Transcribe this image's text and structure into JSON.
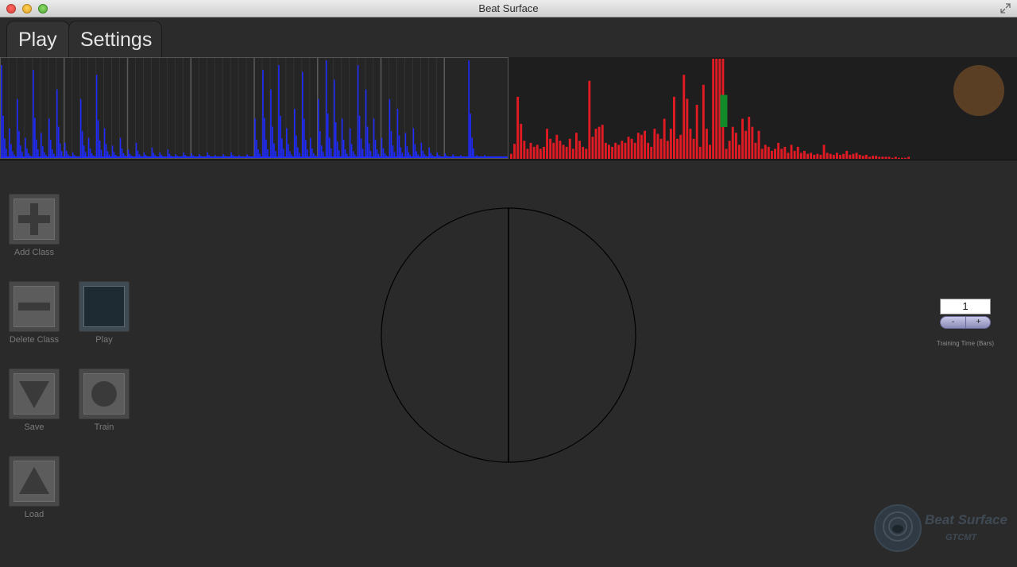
{
  "window": {
    "title": "Beat Surface"
  },
  "tabs": [
    {
      "label": "Play"
    },
    {
      "label": "Settings"
    }
  ],
  "controls": {
    "add_class": "Add Class",
    "delete_class": "Delete Class",
    "play": "Play",
    "save": "Save",
    "train": "Train",
    "load": "Load"
  },
  "training": {
    "value": "1",
    "minus": "-",
    "plus": "+",
    "label": "Training Time (Bars)"
  },
  "logo": {
    "name": "Beat Surface",
    "org": "GTCMT"
  },
  "colors": {
    "waveform": "#1f2bff",
    "spectrum": "#e01b24",
    "spectrum_highlight": "#128a2a",
    "level_indicator": "#5a3f25"
  },
  "visualizer": {
    "waveform_peaks": [
      0.95,
      0.3,
      0.6,
      0.2,
      0.9,
      0.25,
      0.4,
      0.7,
      0.15,
      0.05,
      0.6,
      0.2,
      0.85,
      0.3,
      0.12,
      0.2,
      0.08,
      0.15,
      0.05,
      0.1,
      0.05,
      0.08,
      0.03,
      0.05,
      0.04,
      0.03,
      0.05,
      0.02,
      0.03,
      0.05,
      0.02,
      0.03,
      0.4,
      0.9,
      0.7,
      0.95,
      0.3,
      0.5,
      0.88,
      0.2,
      0.6,
      1.0,
      0.8,
      0.4,
      0.3,
      0.95,
      0.7,
      0.4,
      0.2,
      0.6,
      0.5,
      0.25,
      0.3,
      0.15,
      0.1,
      0.05,
      0.04,
      0.03,
      0.02,
      1.0,
      0.02,
      0.02,
      0.01,
      0.01
    ],
    "spectrum_bins": [
      0.05,
      0.15,
      0.62,
      0.35,
      0.18,
      0.1,
      0.16,
      0.12,
      0.14,
      0.1,
      0.12,
      0.3,
      0.2,
      0.16,
      0.24,
      0.18,
      0.14,
      0.12,
      0.2,
      0.1,
      0.26,
      0.18,
      0.12,
      0.1,
      0.78,
      0.22,
      0.3,
      0.32,
      0.34,
      0.16,
      0.14,
      0.12,
      0.16,
      0.14,
      0.18,
      0.16,
      0.22,
      0.2,
      0.16,
      0.26,
      0.24,
      0.28,
      0.16,
      0.12,
      0.3,
      0.25,
      0.2,
      0.4,
      0.18,
      0.3,
      0.62,
      0.2,
      0.24,
      0.84,
      0.6,
      0.3,
      0.2,
      0.54,
      0.12,
      0.74,
      0.3,
      0.14,
      1.0,
      1.0,
      1.0,
      1.0,
      0.1,
      0.18,
      0.32,
      0.26,
      0.14,
      0.4,
      0.28,
      0.42,
      0.32,
      0.16,
      0.28,
      0.1,
      0.14,
      0.12,
      0.08,
      0.1,
      0.16,
      0.1,
      0.12,
      0.06,
      0.14,
      0.08,
      0.12,
      0.06,
      0.08,
      0.05,
      0.06,
      0.04,
      0.05,
      0.04,
      0.14,
      0.06,
      0.05,
      0.04,
      0.06,
      0.04,
      0.05,
      0.08,
      0.04,
      0.05,
      0.06,
      0.04,
      0.03,
      0.04,
      0.02,
      0.03,
      0.03,
      0.02,
      0.02,
      0.02,
      0.02,
      0.01,
      0.02,
      0.01,
      0.01,
      0.01,
      0.02
    ],
    "highlight_bin": 64,
    "highlight_level": 0.48
  }
}
